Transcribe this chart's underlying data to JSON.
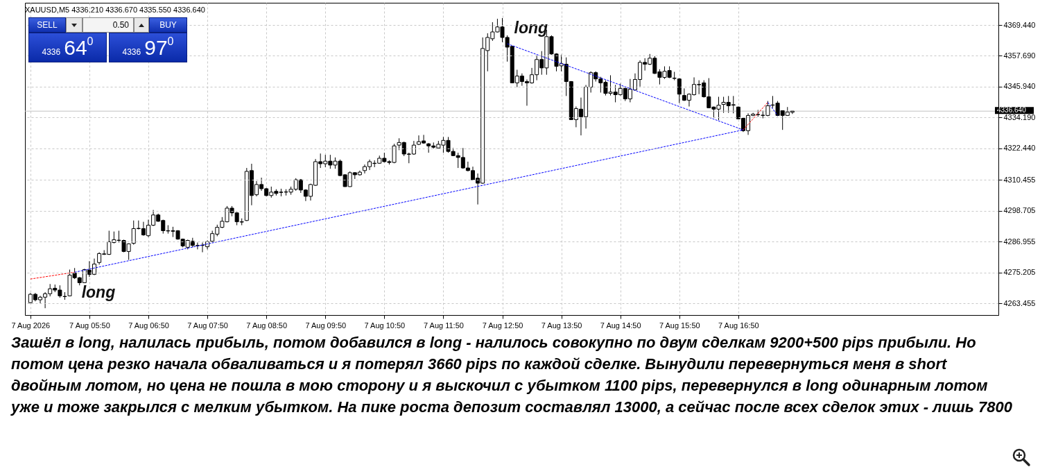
{
  "chart_data": {
    "type": "candlestick",
    "title": "XAUUSD,M5 4336.210 4336.670 4335.550 4336.640",
    "color": "#000000",
    "x": [
      "2026-08-07T04:50",
      "2026-08-07T04:55",
      "2026-08-07T05:00",
      "2026-08-07T05:05",
      "2026-08-07T05:10",
      "2026-08-07T05:15",
      "2026-08-07T05:20",
      "2026-08-07T05:25",
      "2026-08-07T05:30",
      "2026-08-07T05:35",
      "2026-08-07T05:40",
      "2026-08-07T05:45",
      "2026-08-07T05:50",
      "2026-08-07T05:55",
      "2026-08-07T06:00",
      "2026-08-07T06:05",
      "2026-08-07T06:10",
      "2026-08-07T06:15",
      "2026-08-07T06:20",
      "2026-08-07T06:25",
      "2026-08-07T06:30",
      "2026-08-07T06:35",
      "2026-08-07T06:40",
      "2026-08-07T06:45",
      "2026-08-07T06:50",
      "2026-08-07T06:55",
      "2026-08-07T07:00",
      "2026-08-07T07:05",
      "2026-08-07T07:10",
      "2026-08-07T07:15",
      "2026-08-07T07:20",
      "2026-08-07T07:25",
      "2026-08-07T07:30",
      "2026-08-07T07:35",
      "2026-08-07T07:40",
      "2026-08-07T07:45",
      "2026-08-07T07:50",
      "2026-08-07T07:55",
      "2026-08-07T08:00",
      "2026-08-07T08:05",
      "2026-08-07T08:10",
      "2026-08-07T08:15",
      "2026-08-07T08:20",
      "2026-08-07T08:25",
      "2026-08-07T08:30",
      "2026-08-07T08:35",
      "2026-08-07T08:40",
      "2026-08-07T08:45",
      "2026-08-07T08:50",
      "2026-08-07T08:55",
      "2026-08-07T09:00",
      "2026-08-07T09:05",
      "2026-08-07T09:10",
      "2026-08-07T09:15",
      "2026-08-07T09:20",
      "2026-08-07T09:25",
      "2026-08-07T09:30",
      "2026-08-07T09:35",
      "2026-08-07T09:40",
      "2026-08-07T09:45",
      "2026-08-07T09:50",
      "2026-08-07T09:55",
      "2026-08-07T10:00",
      "2026-08-07T10:05",
      "2026-08-07T10:10",
      "2026-08-07T10:15",
      "2026-08-07T10:20",
      "2026-08-07T10:25",
      "2026-08-07T10:30",
      "2026-08-07T10:35",
      "2026-08-07T10:40",
      "2026-08-07T10:45",
      "2026-08-07T10:50",
      "2026-08-07T10:55",
      "2026-08-07T11:00",
      "2026-08-07T11:05",
      "2026-08-07T11:10",
      "2026-08-07T11:15",
      "2026-08-07T11:20",
      "2026-08-07T11:25",
      "2026-08-07T11:30",
      "2026-08-07T11:35",
      "2026-08-07T11:40",
      "2026-08-07T11:45",
      "2026-08-07T11:50",
      "2026-08-07T11:55",
      "2026-08-07T12:00",
      "2026-08-07T12:05",
      "2026-08-07T12:10",
      "2026-08-07T12:15",
      "2026-08-07T12:20",
      "2026-08-07T12:25",
      "2026-08-07T12:30",
      "2026-08-07T12:35",
      "2026-08-07T12:40",
      "2026-08-07T12:45",
      "2026-08-07T12:50",
      "2026-08-07T12:55",
      "2026-08-07T13:00",
      "2026-08-07T13:05",
      "2026-08-07T13:10",
      "2026-08-07T13:15",
      "2026-08-07T13:20",
      "2026-08-07T13:25",
      "2026-08-07T13:30",
      "2026-08-07T13:35",
      "2026-08-07T13:40",
      "2026-08-07T13:45",
      "2026-08-07T13:50",
      "2026-08-07T13:55",
      "2026-08-07T14:00",
      "2026-08-07T14:05",
      "2026-08-07T14:10",
      "2026-08-07T14:15",
      "2026-08-07T14:20",
      "2026-08-07T14:25",
      "2026-08-07T14:30",
      "2026-08-07T14:35",
      "2026-08-07T14:40",
      "2026-08-07T14:45",
      "2026-08-07T14:50",
      "2026-08-07T14:55",
      "2026-08-07T15:00",
      "2026-08-07T15:05",
      "2026-08-07T15:10",
      "2026-08-07T15:15",
      "2026-08-07T15:20",
      "2026-08-07T15:25",
      "2026-08-07T15:30",
      "2026-08-07T15:35",
      "2026-08-07T15:40",
      "2026-08-07T15:45",
      "2026-08-07T15:50",
      "2026-08-07T15:55",
      "2026-08-07T16:00",
      "2026-08-07T16:05",
      "2026-08-07T16:10",
      "2026-08-07T16:15",
      "2026-08-07T16:20",
      "2026-08-07T16:25",
      "2026-08-07T16:30",
      "2026-08-07T16:35",
      "2026-08-07T16:40",
      "2026-08-07T16:45",
      "2026-08-07T16:50",
      "2026-08-07T16:55",
      "2026-08-07T17:00",
      "2026-08-07T17:05",
      "2026-08-07T17:10",
      "2026-08-07T17:15",
      "2026-08-07T17:20",
      "2026-08-07T17:25",
      "2026-08-07T17:30",
      "2026-08-07T17:35",
      "2026-08-07T17:40",
      "2026-08-07T17:45"
    ],
    "ohlc": [
      [
        4263.7,
        4267.4,
        4263.5,
        4266.9
      ],
      [
        4266.9,
        4267.4,
        4264.2,
        4264.8
      ],
      [
        4264.8,
        4266.3,
        4263.5,
        4265.8
      ],
      [
        4265.8,
        4267.7,
        4261.6,
        4267.1
      ],
      [
        4267.1,
        4270.8,
        4266.1,
        4269.0
      ],
      [
        4269.2,
        4270.6,
        4267.7,
        4268.5
      ],
      [
        4268.5,
        4270.3,
        4265.6,
        4266.3
      ],
      [
        4266.1,
        4267.7,
        4264.8,
        4266.0
      ],
      [
        4266.3,
        4276.3,
        4266.1,
        4274.2
      ],
      [
        4275.0,
        4276.9,
        4272.7,
        4273.2
      ],
      [
        4273.2,
        4273.5,
        4270.3,
        4271.3
      ],
      [
        4271.3,
        4276.6,
        4271.3,
        4276.3
      ],
      [
        4276.1,
        4279.5,
        4273.5,
        4274.5
      ],
      [
        4274.5,
        4280.5,
        4274.2,
        4278.4
      ],
      [
        4279.0,
        4282.9,
        4278.2,
        4282.4
      ],
      [
        4282.1,
        4283.7,
        4281.9,
        4282.3
      ],
      [
        4282.1,
        4291.1,
        4281.9,
        4286.9
      ],
      [
        4286.6,
        4290.8,
        4286.3,
        4287.7
      ],
      [
        4287.4,
        4291.1,
        4286.6,
        4287.5
      ],
      [
        4287.4,
        4287.7,
        4282.9,
        4283.2
      ],
      [
        4283.2,
        4286.3,
        4280.0,
        4286.1
      ],
      [
        4286.3,
        4295.0,
        4285.8,
        4291.9
      ],
      [
        4291.9,
        4295.0,
        4291.6,
        4292.0
      ],
      [
        4291.9,
        4294.5,
        4289.2,
        4289.5
      ],
      [
        4289.2,
        4295.3,
        4288.7,
        4293.2
      ],
      [
        4293.2,
        4299.0,
        4292.9,
        4297.1
      ],
      [
        4297.1,
        4297.6,
        4294.5,
        4294.7
      ],
      [
        4295.0,
        4295.3,
        4290.0,
        4291.1
      ],
      [
        4291.1,
        4293.2,
        4290.0,
        4291.0
      ],
      [
        4291.1,
        4292.6,
        4288.7,
        4290.9
      ],
      [
        4291.1,
        4291.3,
        4287.7,
        4287.9
      ],
      [
        4287.9,
        4288.1,
        4284.8,
        4285.3
      ],
      [
        4284.8,
        4287.7,
        4284.0,
        4287.4
      ],
      [
        4287.1,
        4288.4,
        4284.8,
        4285.5
      ],
      [
        4285.5,
        4286.6,
        4284.0,
        4285.4
      ],
      [
        4285.5,
        4286.6,
        4282.9,
        4285.6
      ],
      [
        4285.0,
        4287.4,
        4284.0,
        4286.9
      ],
      [
        4287.1,
        4291.1,
        4286.6,
        4290.0
      ],
      [
        4289.8,
        4293.4,
        4289.0,
        4292.4
      ],
      [
        4292.4,
        4296.3,
        4292.1,
        4294.7
      ],
      [
        4294.5,
        4300.5,
        4294.3,
        4299.7
      ],
      [
        4299.7,
        4300.5,
        4296.6,
        4297.9
      ],
      [
        4297.9,
        4298.2,
        4293.2,
        4294.5
      ],
      [
        4294.5,
        4295.8,
        4293.2,
        4294.4
      ],
      [
        4295.0,
        4315.0,
        4294.8,
        4313.7
      ],
      [
        4314.0,
        4316.6,
        4300.8,
        4304.5
      ],
      [
        4304.8,
        4310.0,
        4304.2,
        4308.7
      ],
      [
        4308.7,
        4311.3,
        4306.3,
        4307.1
      ],
      [
        4307.1,
        4307.4,
        4304.2,
        4304.5
      ],
      [
        4304.5,
        4307.9,
        4303.7,
        4305.8
      ],
      [
        4306.1,
        4306.9,
        4304.5,
        4305.3
      ],
      [
        4305.8,
        4307.1,
        4304.2,
        4305.7
      ],
      [
        4305.8,
        4306.9,
        4304.5,
        4305.9
      ],
      [
        4305.8,
        4307.9,
        4304.8,
        4306.9
      ],
      [
        4306.9,
        4311.1,
        4306.3,
        4310.5
      ],
      [
        4310.5,
        4310.8,
        4305.5,
        4306.6
      ],
      [
        4306.6,
        4306.9,
        4302.4,
        4304.2
      ],
      [
        4304.2,
        4309.0,
        4302.6,
        4308.7
      ],
      [
        4308.4,
        4318.4,
        4308.2,
        4317.4
      ],
      [
        4317.4,
        4320.5,
        4315.0,
        4316.6
      ],
      [
        4316.6,
        4320.0,
        4315.3,
        4317.6
      ],
      [
        4317.6,
        4320.0,
        4314.7,
        4316.1
      ],
      [
        4316.1,
        4319.0,
        4314.7,
        4317.6
      ],
      [
        4317.6,
        4318.2,
        4311.9,
        4312.1
      ],
      [
        4312.4,
        4312.6,
        4307.8,
        4307.9
      ],
      [
        4307.9,
        4313.7,
        4307.8,
        4313.2
      ],
      [
        4313.2,
        4313.4,
        4310.8,
        4312.4
      ],
      [
        4312.4,
        4314.0,
        4312.1,
        4313.4
      ],
      [
        4314.0,
        4316.3,
        4312.9,
        4315.5
      ],
      [
        4315.5,
        4318.2,
        4314.2,
        4317.4
      ],
      [
        4316.8,
        4317.9,
        4315.3,
        4316.7
      ],
      [
        4316.8,
        4319.7,
        4316.6,
        4318.7
      ],
      [
        4318.7,
        4320.8,
        4317.1,
        4317.4
      ],
      [
        4317.4,
        4317.9,
        4316.3,
        4317.1
      ],
      [
        4317.1,
        4324.2,
        4316.8,
        4323.4
      ],
      [
        4323.7,
        4326.3,
        4321.8,
        4324.7
      ],
      [
        4324.7,
        4325.0,
        4319.5,
        4320.3
      ],
      [
        4320.3,
        4320.8,
        4316.8,
        4320.2
      ],
      [
        4320.3,
        4325.3,
        4320.0,
        4323.7
      ],
      [
        4324.0,
        4327.4,
        4323.7,
        4325.0
      ],
      [
        4325.3,
        4327.6,
        4324.2,
        4324.5
      ],
      [
        4324.2,
        4324.5,
        4320.8,
        4323.4
      ],
      [
        4323.4,
        4324.7,
        4322.4,
        4322.9
      ],
      [
        4322.6,
        4325.3,
        4322.4,
        4324.0
      ],
      [
        4323.7,
        4326.8,
        4320.8,
        4325.5
      ],
      [
        4325.5,
        4326.8,
        4320.8,
        4321.3
      ],
      [
        4321.3,
        4322.6,
        4319.5,
        4319.7
      ],
      [
        4319.7,
        4320.8,
        4315.0,
        4319.0
      ],
      [
        4319.0,
        4322.6,
        4314.7,
        4315.0
      ],
      [
        4315.0,
        4317.4,
        4313.7,
        4314.0
      ],
      [
        4314.0,
        4315.5,
        4310.3,
        4310.5
      ],
      [
        4311.1,
        4312.9,
        4301.1,
        4309.2
      ],
      [
        4309.2,
        4364.7,
        4309.0,
        4360.5
      ],
      [
        4359.7,
        4366.3,
        4351.8,
        4364.7
      ],
      [
        4364.2,
        4370.5,
        4363.4,
        4366.8
      ],
      [
        4366.8,
        4371.8,
        4366.6,
        4368.7
      ],
      [
        4368.7,
        4372.1,
        4362.9,
        4364.7
      ],
      [
        4364.7,
        4365.5,
        4355.5,
        4361.0
      ],
      [
        4361.3,
        4361.5,
        4347.3,
        4347.4
      ],
      [
        4347.4,
        4352.4,
        4345.8,
        4350.0
      ],
      [
        4350.0,
        4351.0,
        4346.3,
        4347.9
      ],
      [
        4347.9,
        4348.7,
        4338.7,
        4347.4
      ],
      [
        4347.4,
        4353.1,
        4347.1,
        4350.5
      ],
      [
        4350.5,
        4357.9,
        4348.4,
        4356.3
      ],
      [
        4356.3,
        4359.5,
        4350.5,
        4353.1
      ],
      [
        4353.1,
        4367.6,
        4350.5,
        4365.0
      ],
      [
        4365.0,
        4365.5,
        4358.1,
        4358.4
      ],
      [
        4358.4,
        4358.7,
        4351.8,
        4353.7
      ],
      [
        4353.9,
        4358.1,
        4351.8,
        4354.7
      ],
      [
        4354.5,
        4357.1,
        4342.4,
        4347.9
      ],
      [
        4347.9,
        4348.1,
        4333.3,
        4333.4
      ],
      [
        4333.4,
        4338.4,
        4330.5,
        4337.6
      ],
      [
        4337.4,
        4341.8,
        4327.4,
        4334.5
      ],
      [
        4334.5,
        4346.6,
        4330.0,
        4345.8
      ],
      [
        4345.8,
        4351.8,
        4343.7,
        4351.3
      ],
      [
        4351.3,
        4351.8,
        4347.9,
        4348.9
      ],
      [
        4348.9,
        4349.7,
        4343.7,
        4347.4
      ],
      [
        4347.6,
        4348.4,
        4342.6,
        4343.4
      ],
      [
        4343.4,
        4350.3,
        4342.6,
        4343.9
      ],
      [
        4343.9,
        4346.6,
        4340.0,
        4342.9
      ],
      [
        4342.9,
        4347.1,
        4342.6,
        4345.3
      ],
      [
        4345.3,
        4345.5,
        4340.5,
        4341.3
      ],
      [
        4341.3,
        4348.9,
        4340.0,
        4345.0
      ],
      [
        4344.7,
        4351.0,
        4344.5,
        4348.7
      ],
      [
        4348.7,
        4356.0,
        4346.0,
        4355.2
      ],
      [
        4355.2,
        4356.8,
        4352.1,
        4354.5
      ],
      [
        4354.5,
        4358.4,
        4354.2,
        4356.8
      ],
      [
        4356.8,
        4357.6,
        4350.8,
        4351.0
      ],
      [
        4351.6,
        4352.6,
        4346.8,
        4349.5
      ],
      [
        4349.5,
        4353.7,
        4348.9,
        4351.8
      ],
      [
        4352.1,
        4353.7,
        4349.2,
        4349.5
      ],
      [
        4349.2,
        4351.6,
        4348.4,
        4349.1
      ],
      [
        4348.9,
        4349.2,
        4339.7,
        4343.1
      ],
      [
        4342.6,
        4345.3,
        4340.5,
        4340.8
      ],
      [
        4340.8,
        4343.4,
        4338.4,
        4343.1
      ],
      [
        4342.9,
        4349.5,
        4342.6,
        4346.8
      ],
      [
        4346.8,
        4348.4,
        4343.1,
        4346.7
      ],
      [
        4347.4,
        4348.4,
        4341.8,
        4342.1
      ],
      [
        4342.1,
        4349.2,
        4337.8,
        4337.9
      ],
      [
        4338.2,
        4338.4,
        4334.2,
        4337.4
      ],
      [
        4337.4,
        4342.1,
        4333.2,
        4338.9
      ],
      [
        4339.2,
        4342.1,
        4336.0,
        4340.0
      ],
      [
        4340.0,
        4342.4,
        4336.0,
        4338.7
      ],
      [
        4338.9,
        4342.4,
        4335.8,
        4339.1
      ],
      [
        4338.2,
        4338.4,
        4333.6,
        4333.7
      ],
      [
        4333.9,
        4334.2,
        4328.7,
        4329.2
      ],
      [
        4329.2,
        4335.8,
        4327.6,
        4335.0
      ],
      [
        4335.0,
        4336.0,
        4334.7,
        4335.5
      ],
      [
        4335.3,
        4337.1,
        4334.5,
        4335.4
      ],
      [
        4335.0,
        4336.8,
        4333.9,
        4335.1
      ],
      [
        4335.0,
        4340.5,
        4334.7,
        4338.7
      ],
      [
        4338.9,
        4342.4,
        4337.9,
        4339.0
      ],
      [
        4339.7,
        4340.5,
        4334.7,
        4335.0
      ],
      [
        4336.8,
        4336.9,
        4329.5,
        4335.0
      ],
      [
        4335.0,
        4338.2,
        4334.9,
        4336.3
      ],
      [
        4336.21,
        4336.67,
        4335.55,
        4336.64
      ]
    ],
    "series": [
      {
        "type": "line",
        "color": "#ff0000",
        "line_style": "dashed",
        "x": [
          "2026-08-07T04:50",
          "2026-08-07T05:35"
        ],
        "values": [
          4272.7,
          4275.3
        ]
      },
      {
        "type": "line",
        "color": "#0000ff",
        "line_style": "dashed",
        "x": [
          "2026-08-07T05:35",
          "2026-08-07T16:55"
        ],
        "values": [
          4275.3,
          4329.5
        ]
      },
      {
        "type": "line",
        "color": "#0000ff",
        "line_style": "dashed",
        "x": [
          "2026-08-07T12:55",
          "2026-08-07T16:55"
        ],
        "values": [
          4362.3,
          4329.5
        ]
      },
      {
        "type": "line",
        "color": "#ff0000",
        "line_style": "dashed",
        "x": [
          "2026-08-07T16:55",
          "2026-08-07T17:20"
        ],
        "values": [
          4329.5,
          4340.0
        ]
      },
      {
        "type": "line",
        "color": "#0000ff",
        "line_style": "dashed",
        "x": [
          "2026-08-07T17:20",
          "2026-08-07T17:30"
        ],
        "values": [
          4340.0,
          4335.0
        ]
      }
    ],
    "xlim": [
      "2026-08-07T04:48",
      "2026-08-07T21:11"
    ],
    "xticks": [
      {
        "value": "2026-08-07T04:50",
        "label": "7 Aug 2026"
      },
      {
        "value": "2026-08-07T05:50",
        "label": "7 Aug 05:50"
      },
      {
        "value": "2026-08-07T06:50",
        "label": "7 Aug 06:50"
      },
      {
        "value": "2026-08-07T07:50",
        "label": "7 Aug 07:50"
      },
      {
        "value": "2026-08-07T08:50",
        "label": "7 Aug 08:50"
      },
      {
        "value": "2026-08-07T09:50",
        "label": "7 Aug 09:50"
      },
      {
        "value": "2026-08-07T10:50",
        "label": "7 Aug 10:50"
      },
      {
        "value": "2026-08-07T11:50",
        "label": "7 Aug 11:50"
      },
      {
        "value": "2026-08-07T12:50",
        "label": "7 Aug 12:50"
      },
      {
        "value": "2026-08-07T13:50",
        "label": "7 Aug 13:50"
      },
      {
        "value": "2026-08-07T14:50",
        "label": "7 Aug 14:50"
      },
      {
        "value": "2026-08-07T15:50",
        "label": "7 Aug 15:50"
      },
      {
        "value": "2026-08-07T16:50",
        "label": "7 Aug 16:50"
      }
    ],
    "ylim": [
      4259.0,
      4377.9
    ],
    "yticks": [
      4263.455,
      4275.205,
      4286.955,
      4298.705,
      4310.455,
      {
        "value": 4322.44,
        "label": "4322.440"
      },
      {
        "value": 4334.19,
        "label": "4334.190"
      },
      {
        "value": 4345.94,
        "label": "4345.940"
      },
      {
        "value": 4357.69,
        "label": "4357.690"
      },
      {
        "value": 4369.44,
        "label": "4369.440"
      }
    ],
    "grid": true,
    "ref_lines": [
      {
        "axis": "y",
        "value": 4336.64,
        "label": "4336.640",
        "color": "#c0c0c0"
      }
    ],
    "annotations": [
      {
        "text": "long",
        "x": "2026-08-07T05:35",
        "y": 4275.3
      },
      {
        "text": "long",
        "x": "2026-08-07T12:55",
        "y": 4362.3
      },
      "Зашёл в long, налилась прибыль, потом добавился в long - налилось совокупно по двум сделкам  9200+500 pips прибыли. Но потом цена резко начала обваливаться и я потерял 3660 pips по каждой сделке. Вынудили перевернуться меня в short двойным лотом, но цена не пошла в мою сторону и я выскочил с убытком 1100 pips, перевернулся в long одинарным лотом уже и тоже закрылся с мелким убытком. На пике роста депозит составлял 13000, а сейчас после всех сделок этих - лишь 7800",
      "SELL",
      "0.50",
      "BUY",
      "4336",
      "64$^{0}$",
      "4336",
      "97$^{0}$"
    ]
  }
}
